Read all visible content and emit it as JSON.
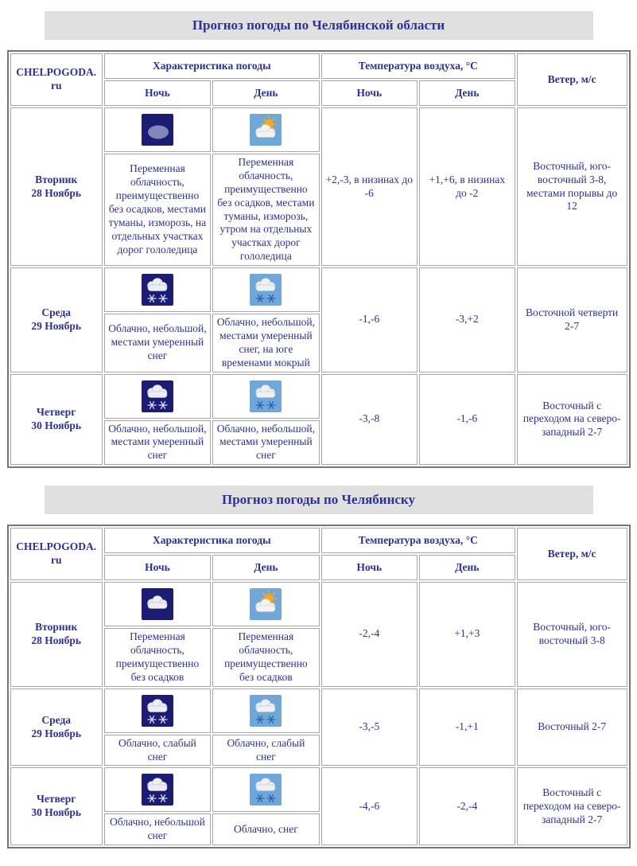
{
  "colors": {
    "text_navy": "#2e3192",
    "title_bar_bg": "#e0e0e0",
    "night_icon_bg": "#1c1c72",
    "day_icon_bg": "#6fa8d8",
    "cell_border": "#a6a6a6",
    "outer_border": "#767676"
  },
  "sections": [
    {
      "title": "Прогноз погоды по Челябинской области",
      "table": {
        "brand": "CHELPOGODA.ru",
        "col_weather": "Характеристика погоды",
        "col_temp": "Температура воздуха, °С",
        "col_wind": "Ветер, м/с",
        "sub_night": "Ночь",
        "sub_day": "День",
        "rows": [
          {
            "day_name": "Вторник",
            "day_date": "28 Ноябрь",
            "night_icon": "night-moon-cloud",
            "day_icon": "day-sun-clouds",
            "night_desc": "Переменная облачность, преимущественно без осадков, местами туманы, изморозь, на отдельных участках дорог гололедица",
            "day_desc": "Переменная облачность, преимущественно без осадков, местами туманы, изморозь, утром на отдельных участках дорог гололедица",
            "temp_night": "+2,-3, в низинах до -6",
            "temp_day": "+1,+6, в низинах до -2",
            "wind": "Восточный, юго-восточный 3-8, местами порывы до 12"
          },
          {
            "day_name": "Среда",
            "day_date": "29 Ноябрь",
            "night_icon": "night-clouds-snow",
            "day_icon": "day-clouds-snow",
            "night_desc": "Облачно, небольшой, местами умеренный снег",
            "day_desc": "Облачно, небольшой, местами умеренный снег, на юге временами мокрый",
            "temp_night": "-1,-6",
            "temp_day": "-3,+2",
            "wind": "Восточной четверти 2-7"
          },
          {
            "day_name": "Четверг",
            "day_date": "30 Ноябрь",
            "night_icon": "night-clouds-snow",
            "day_icon": "day-clouds-snow",
            "night_desc": "Облачно, небольшой, местами умеренный снег",
            "day_desc": "Облачно, небольшой, местами умеренный снег",
            "temp_night": "-3,-8",
            "temp_day": "-1,-6",
            "wind": "Восточный с переходом на северо-западный 2-7"
          }
        ]
      }
    },
    {
      "title": "Прогноз погоды по Челябинску",
      "table": {
        "brand": "CHELPOGODA.ru",
        "col_weather": "Характеристика погоды",
        "col_temp": "Температура воздуха, °С",
        "col_wind": "Ветер, м/с",
        "sub_night": "Ночь",
        "sub_day": "День",
        "rows": [
          {
            "day_name": "Вторник",
            "day_date": "28 Ноябрь",
            "night_icon": "night-clouds",
            "day_icon": "day-sun-clouds",
            "night_desc": "Переменная облачность, преимущественно без осадков",
            "day_desc": "Переменная облачность, преимущественно без осадков",
            "temp_night": "-2,-4",
            "temp_day": "+1,+3",
            "wind": "Восточный, юго-восточный 3-8"
          },
          {
            "day_name": "Среда",
            "day_date": "29 Ноябрь",
            "night_icon": "night-clouds-snow",
            "day_icon": "day-clouds-snow",
            "night_desc": "Облачно, слабый снег",
            "day_desc": "Облачно, слабый снег",
            "temp_night": "-3,-5",
            "temp_day": "-1,+1",
            "wind": "Восточный 2-7"
          },
          {
            "day_name": "Четверг",
            "day_date": "30 Ноябрь",
            "night_icon": "night-clouds-snow",
            "day_icon": "day-clouds-snow",
            "night_desc": "Облачно, небольшой снег",
            "day_desc": "Облачно, снег",
            "temp_night": "-4,-6",
            "temp_day": "-2,-4",
            "wind": "Восточный с переходом на северо-западный 2-7"
          }
        ]
      }
    }
  ]
}
